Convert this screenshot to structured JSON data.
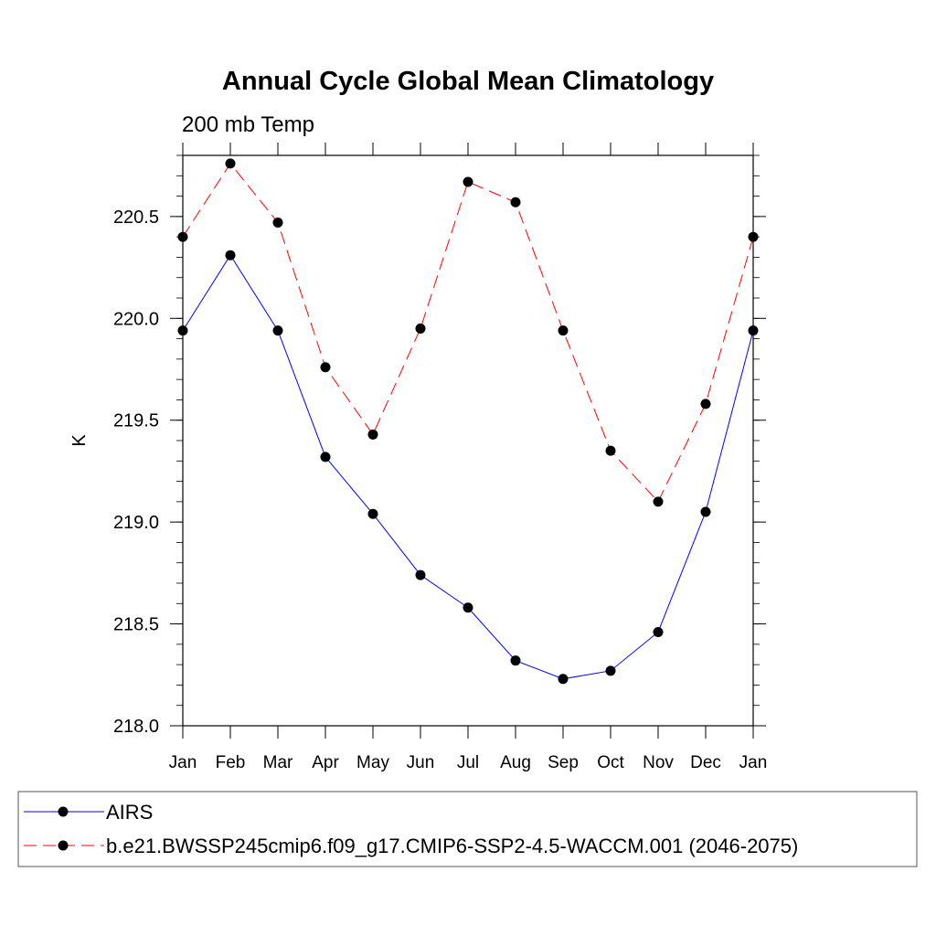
{
  "chart_data": {
    "type": "line",
    "title": "Annual Cycle Global Mean Climatology",
    "subtitle": "200 mb Temp",
    "xlabel": "",
    "ylabel": "K",
    "categories": [
      "Jan",
      "Feb",
      "Mar",
      "Apr",
      "May",
      "Jun",
      "Jul",
      "Aug",
      "Sep",
      "Oct",
      "Nov",
      "Dec",
      "Jan"
    ],
    "ylim": [
      218.0,
      220.8
    ],
    "yticks": [
      "218.0",
      "218.5",
      "219.0",
      "219.5",
      "220.0",
      "220.5"
    ],
    "yticks_values": [
      218.0,
      218.5,
      219.0,
      219.5,
      220.0,
      220.5
    ],
    "series": [
      {
        "name": "AIRS",
        "color": "#0000ff",
        "dashed": false,
        "values": [
          219.94,
          220.31,
          219.94,
          219.32,
          219.04,
          218.74,
          218.58,
          218.32,
          218.23,
          218.27,
          218.46,
          219.05,
          219.94
        ]
      },
      {
        "name": "b.e21.BWSSP245cmip6.f09_g17.CMIP6-SSP2-4.5-WACCM.001 (2046-2075)",
        "color": "#ff0000",
        "dashed": true,
        "values": [
          220.4,
          220.76,
          220.47,
          219.76,
          219.43,
          219.95,
          220.67,
          220.57,
          219.94,
          219.35,
          219.1,
          219.58,
          220.4
        ]
      }
    ],
    "legend": {
      "placement": "bottom"
    }
  }
}
